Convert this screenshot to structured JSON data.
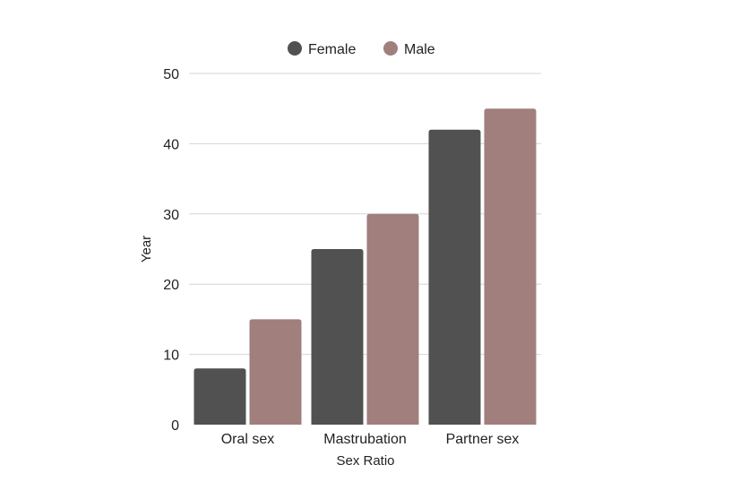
{
  "chart_data": {
    "type": "bar",
    "title": "",
    "xlabel": "Sex Ratio",
    "ylabel": "Year",
    "categories": [
      "Oral sex",
      "Mastrubation",
      "Partner sex"
    ],
    "series": [
      {
        "name": "Female",
        "values": [
          8,
          25,
          42
        ],
        "color": "#515151"
      },
      {
        "name": "Male",
        "values": [
          15,
          30,
          45
        ],
        "color": "#a07f7c"
      }
    ],
    "ylim": [
      0,
      50
    ],
    "yticks": [
      0,
      10,
      20,
      30,
      40,
      50
    ],
    "grid": true,
    "legend_position": "top-center"
  }
}
